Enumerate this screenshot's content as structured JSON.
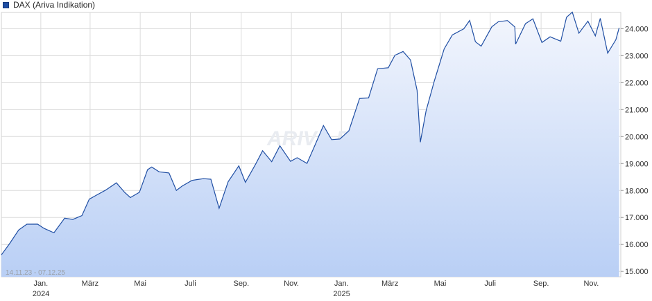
{
  "legend": {
    "label": "DAX (Ariva Indikation)",
    "color": "#1f4ea3"
  },
  "watermark": "ARIVA.DE",
  "date_range": "14.11.23 - 07.12.25",
  "chart_data": {
    "type": "area",
    "series": [
      {
        "name": "DAX (Ariva Indikation)",
        "points": [
          [
            "2023-11-14",
            15614
          ],
          [
            "2023-11-24",
            16029
          ],
          [
            "2023-12-05",
            16534
          ],
          [
            "2023-12-15",
            16750
          ],
          [
            "2023-12-28",
            16752
          ],
          [
            "2024-01-05",
            16594
          ],
          [
            "2024-01-17",
            16432
          ],
          [
            "2024-01-30",
            16972
          ],
          [
            "2024-02-09",
            16926
          ],
          [
            "2024-02-20",
            17068
          ],
          [
            "2024-02-29",
            17678
          ],
          [
            "2024-03-08",
            17814
          ],
          [
            "2024-03-20",
            18015
          ],
          [
            "2024-04-02",
            18283
          ],
          [
            "2024-04-12",
            17930
          ],
          [
            "2024-04-19",
            17737
          ],
          [
            "2024-04-30",
            17932
          ],
          [
            "2024-05-10",
            18772
          ],
          [
            "2024-05-15",
            18869
          ],
          [
            "2024-05-24",
            18693
          ],
          [
            "2024-06-05",
            18652
          ],
          [
            "2024-06-14",
            18002
          ],
          [
            "2024-06-21",
            18163
          ],
          [
            "2024-07-03",
            18374
          ],
          [
            "2024-07-10",
            18407
          ],
          [
            "2024-07-17",
            18437
          ],
          [
            "2024-07-26",
            18417
          ],
          [
            "2024-08-05",
            17339
          ],
          [
            "2024-08-16",
            18322
          ],
          [
            "2024-08-29",
            18912
          ],
          [
            "2024-09-06",
            18302
          ],
          [
            "2024-09-19",
            19002
          ],
          [
            "2024-09-27",
            19474
          ],
          [
            "2024-10-08",
            19066
          ],
          [
            "2024-10-18",
            19657
          ],
          [
            "2024-10-31",
            19078
          ],
          [
            "2024-11-08",
            19215
          ],
          [
            "2024-11-20",
            19005
          ],
          [
            "2024-11-29",
            19626
          ],
          [
            "2024-12-10",
            20405
          ],
          [
            "2024-12-20",
            19884
          ],
          [
            "2024-12-30",
            19909
          ],
          [
            "2025-01-10",
            20214
          ],
          [
            "2025-01-23",
            21411
          ],
          [
            "2025-02-03",
            21428
          ],
          [
            "2025-02-14",
            22513
          ],
          [
            "2025-02-27",
            22551
          ],
          [
            "2025-03-07",
            23009
          ],
          [
            "2025-03-17",
            23154
          ],
          [
            "2025-03-26",
            22839
          ],
          [
            "2025-04-03",
            21717
          ],
          [
            "2025-04-07",
            19790
          ],
          [
            "2025-04-14",
            20954
          ],
          [
            "2025-04-24",
            22064
          ],
          [
            "2025-05-06",
            23250
          ],
          [
            "2025-05-16",
            23767
          ],
          [
            "2025-05-30",
            23997
          ],
          [
            "2025-06-06",
            24304
          ],
          [
            "2025-06-13",
            23516
          ],
          [
            "2025-06-20",
            23350
          ],
          [
            "2025-07-03",
            24069
          ],
          [
            "2025-07-11",
            24255
          ],
          [
            "2025-07-22",
            24300
          ],
          [
            "2025-07-31",
            24065
          ],
          [
            "2025-08-01",
            23426
          ],
          [
            "2025-08-13",
            24185
          ],
          [
            "2025-08-22",
            24363
          ],
          [
            "2025-09-02",
            23487
          ],
          [
            "2025-09-12",
            23698
          ],
          [
            "2025-09-25",
            23534
          ],
          [
            "2025-10-02",
            24423
          ],
          [
            "2025-10-09",
            24611
          ],
          [
            "2025-10-17",
            23830
          ],
          [
            "2025-10-28",
            24278
          ],
          [
            "2025-11-06",
            23734
          ],
          [
            "2025-11-12",
            24381
          ],
          [
            "2025-11-21",
            23091
          ],
          [
            "2025-12-01",
            23589
          ],
          [
            "2025-12-05",
            24028
          ]
        ]
      }
    ],
    "xlim": [
      "2023-11-14",
      "2025-12-07"
    ],
    "ylim": [
      14800,
      24600
    ],
    "y_ticks": [
      15000,
      16000,
      17000,
      18000,
      19000,
      20000,
      21000,
      22000,
      23000,
      24000
    ],
    "y_tick_labels": [
      "15.000",
      "16.000",
      "17.000",
      "18.000",
      "19.000",
      "20.000",
      "21.000",
      "22.000",
      "23.000",
      "24.000"
    ],
    "x_ticks": [
      {
        "date": "2024-01-01",
        "label": "Jan.",
        "year": "2024"
      },
      {
        "date": "2024-03-01",
        "label": "März",
        "year": ""
      },
      {
        "date": "2024-05-01",
        "label": "Mai",
        "year": ""
      },
      {
        "date": "2024-07-01",
        "label": "Juli",
        "year": ""
      },
      {
        "date": "2024-09-01",
        "label": "Sep.",
        "year": ""
      },
      {
        "date": "2024-11-01",
        "label": "Nov.",
        "year": ""
      },
      {
        "date": "2025-01-01",
        "label": "Jan.",
        "year": "2025"
      },
      {
        "date": "2025-03-01",
        "label": "März",
        "year": ""
      },
      {
        "date": "2025-05-01",
        "label": "Mai",
        "year": ""
      },
      {
        "date": "2025-07-01",
        "label": "Juli",
        "year": ""
      },
      {
        "date": "2025-09-01",
        "label": "Sep.",
        "year": ""
      },
      {
        "date": "2025-11-01",
        "label": "Nov.",
        "year": ""
      }
    ],
    "y_axis_position": "right",
    "grid": true,
    "colors": {
      "line": "#1f4ea3",
      "fill_top": "#f3f6fd",
      "fill_bottom": "#b9cff5",
      "grid": "#dcdcdc"
    }
  }
}
